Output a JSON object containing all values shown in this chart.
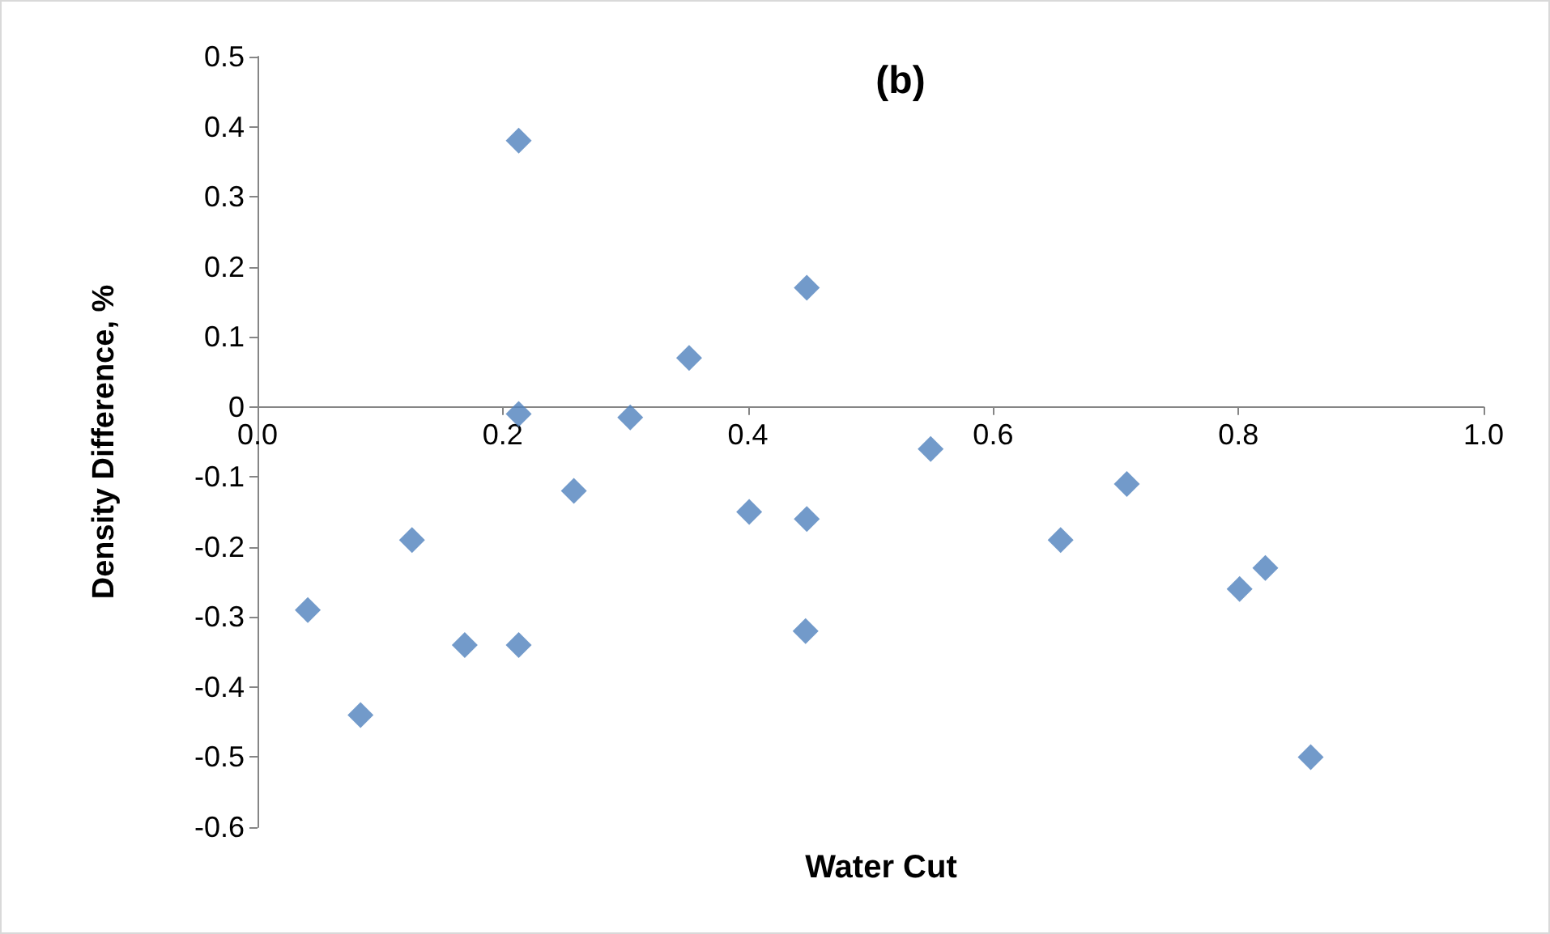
{
  "chart_data": {
    "type": "scatter",
    "title": "(b)",
    "xlabel": "Water Cut",
    "ylabel": "Density Difference, %",
    "x": [
      0.041,
      0.084,
      0.126,
      0.169,
      0.213,
      0.213,
      0.213,
      0.258,
      0.304,
      0.352,
      0.401,
      0.448,
      0.448,
      0.447,
      0.549,
      0.655,
      0.709,
      0.801,
      0.822,
      0.859
    ],
    "values": [
      -0.29,
      -0.44,
      -0.19,
      -0.34,
      0.38,
      -0.01,
      -0.34,
      -0.12,
      -0.015,
      0.07,
      -0.15,
      0.17,
      -0.16,
      -0.32,
      -0.06,
      -0.19,
      -0.11,
      -0.26,
      -0.23,
      -0.5
    ],
    "color": "#4f81bd",
    "marker": "diamond",
    "xlim": [
      0,
      1
    ],
    "xticks": [
      {
        "value": 0,
        "label": "0.0"
      },
      {
        "value": 0.2,
        "label": "0.2"
      },
      {
        "value": 0.4,
        "label": "0.4"
      },
      {
        "value": 0.6,
        "label": "0.6"
      },
      {
        "value": 0.8,
        "label": "0.8"
      },
      {
        "value": 1,
        "label": "1.0"
      }
    ],
    "ylim": [
      -0.6,
      0.5
    ],
    "yticks": [
      -0.6,
      -0.5,
      -0.4,
      -0.3,
      -0.2,
      -0.1,
      0,
      0.1,
      0.2,
      0.3,
      0.4,
      0.5
    ]
  }
}
